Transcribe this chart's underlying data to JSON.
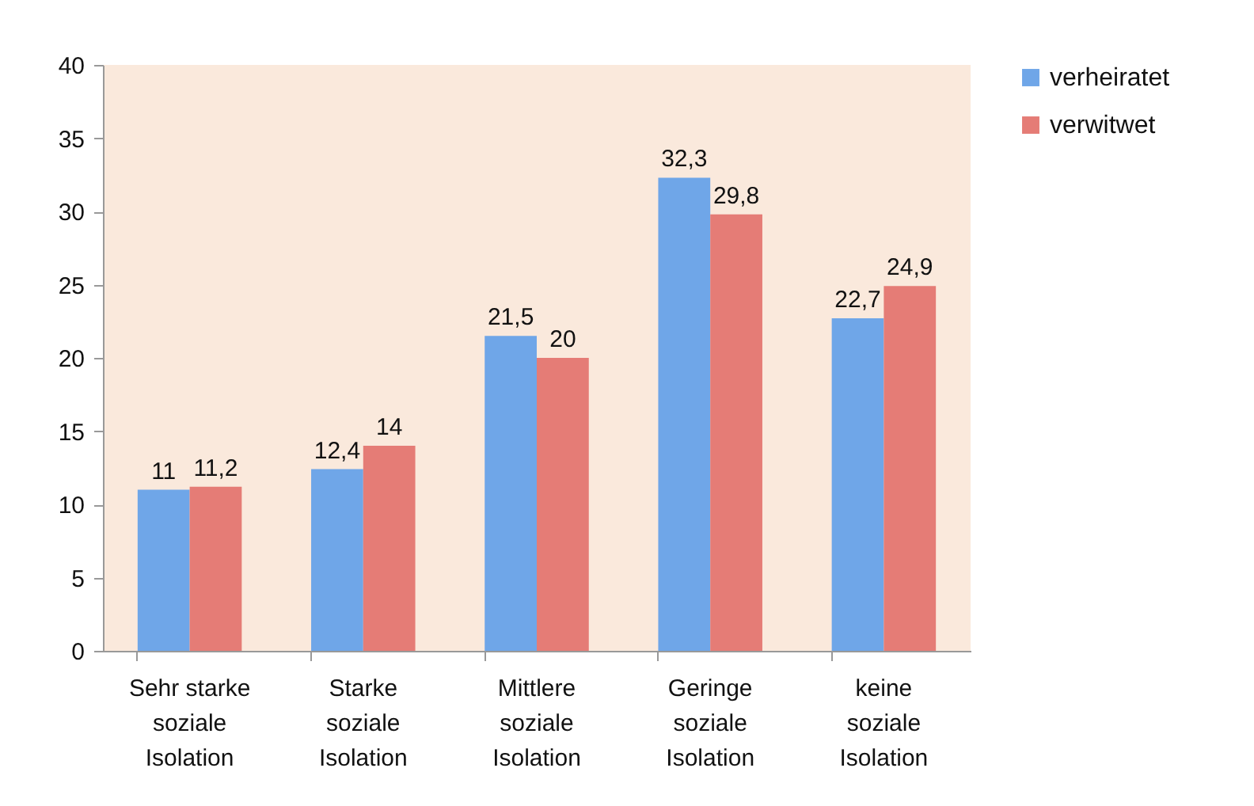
{
  "chart_data": {
    "type": "bar",
    "categories": [
      "Sehr starke soziale Isolation",
      "Starke soziale Isolation",
      "Mittlere soziale Isolation",
      "Geringe soziale Isolation",
      "keine soziale Isolation"
    ],
    "series": [
      {
        "name": "verheiratet",
        "color": "#6fa6e8",
        "values": [
          11,
          12.4,
          21.5,
          32.3,
          22.7
        ],
        "value_labels": [
          "11",
          "12,4",
          "21,5",
          "32,3",
          "22,7"
        ]
      },
      {
        "name": "verwitwet",
        "color": "#e57c76",
        "values": [
          11.2,
          14,
          20,
          29.8,
          24.9
        ],
        "value_labels": [
          "11,2",
          "14",
          "20",
          "29,8",
          "24,9"
        ]
      }
    ],
    "ylim": [
      0,
      40
    ],
    "yticks": [
      0,
      5,
      10,
      15,
      20,
      25,
      30,
      35,
      40
    ],
    "grid": false,
    "legend": "right"
  }
}
